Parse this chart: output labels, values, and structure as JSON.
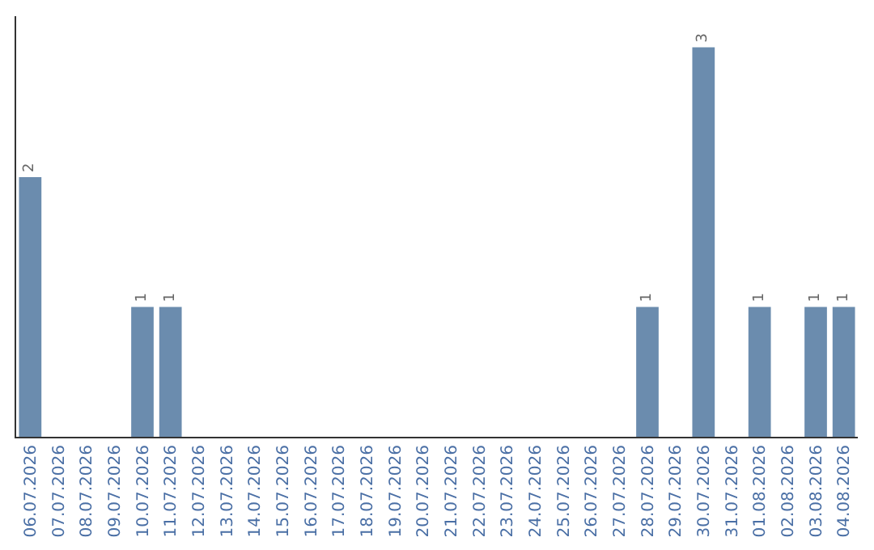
{
  "chart_data": {
    "type": "bar",
    "categories": [
      "06.07.2026",
      "07.07.2026",
      "08.07.2026",
      "09.07.2026",
      "10.07.2026",
      "11.07.2026",
      "12.07.2026",
      "13.07.2026",
      "14.07.2026",
      "15.07.2026",
      "16.07.2026",
      "17.07.2026",
      "18.07.2026",
      "19.07.2026",
      "20.07.2026",
      "21.07.2026",
      "22.07.2026",
      "23.07.2026",
      "24.07.2026",
      "25.07.2026",
      "26.07.2026",
      "27.07.2026",
      "28.07.2026",
      "29.07.2026",
      "30.07.2026",
      "31.07.2026",
      "01.08.2026",
      "02.08.2026",
      "03.08.2026",
      "04.08.2026"
    ],
    "values": [
      2,
      0,
      0,
      0,
      1,
      1,
      0,
      0,
      0,
      0,
      0,
      0,
      0,
      0,
      0,
      0,
      0,
      0,
      0,
      0,
      0,
      0,
      1,
      0,
      3,
      0,
      1,
      0,
      1,
      1
    ],
    "value_labels": [
      "2",
      null,
      null,
      null,
      "1",
      "1",
      null,
      null,
      null,
      null,
      null,
      null,
      null,
      null,
      null,
      null,
      null,
      null,
      null,
      null,
      null,
      null,
      "1",
      null,
      "3",
      null,
      "1",
      null,
      "1",
      "1"
    ],
    "color": "#6b8cae",
    "tick_labels": "x"
  }
}
